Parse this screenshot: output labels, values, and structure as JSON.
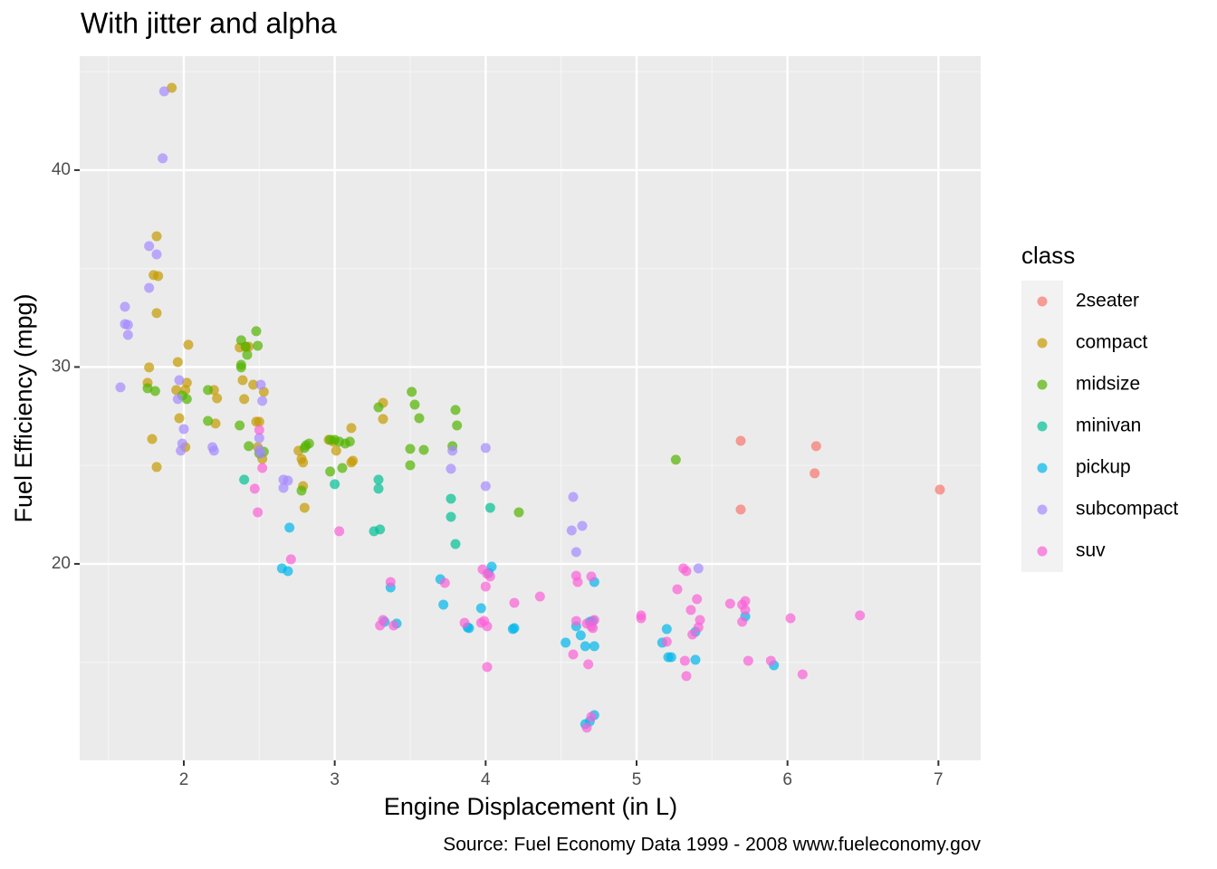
{
  "chart_data": {
    "type": "scatter",
    "title": "With jitter and alpha",
    "x_label": "Engine Displacement (in L)",
    "y_label": "Fuel Efficiency (mpg)",
    "caption": "Source: Fuel Economy Data 1999 - 2008 www.fueleconomy.gov",
    "legend_title": "class",
    "legend_position": "right",
    "grid": true,
    "alpha": 0.7,
    "xlim": [
      1.31,
      7.28
    ],
    "ylim": [
      10.02,
      45.79
    ],
    "xticks": [
      2,
      3,
      4,
      5,
      6,
      7
    ],
    "yticks": [
      20,
      30,
      40
    ],
    "series": [
      {
        "name": "2seater",
        "color": "#F8766D",
        "x": [
          5.69,
          6.19,
          6.18,
          5.69,
          7.01
        ],
        "y": [
          26.25,
          25.98,
          24.6,
          22.76,
          23.77
        ]
      },
      {
        "name": "compact",
        "color": "#C49A00",
        "x": [
          1.92,
          1.82,
          1.8,
          1.83,
          1.82,
          1.77,
          1.76,
          1.79,
          1.82,
          1.96,
          1.95,
          2.02,
          2.01,
          2.03,
          2.2,
          1.97,
          2.01,
          2.22,
          2.21,
          2.37,
          2.41,
          2.43,
          2.39,
          2.46,
          2.4,
          2.48,
          2.5,
          2.49,
          2.52,
          2.53,
          2.76,
          2.78,
          2.79,
          2.79,
          2.8,
          2.96,
          2.99,
          3.01,
          3.11,
          3.11,
          3.12,
          3.32,
          3.32
        ],
        "y": [
          44.18,
          36.64,
          34.67,
          34.62,
          32.74,
          29.98,
          29.2,
          26.34,
          24.92,
          30.25,
          28.83,
          29.2,
          28.83,
          31.13,
          28.83,
          27.4,
          25.93,
          28.41,
          27.13,
          30.99,
          31.03,
          31.03,
          29.33,
          29.1,
          28.37,
          27.22,
          27.22,
          25.93,
          25.33,
          28.74,
          25.75,
          25.33,
          25.15,
          23.95,
          22.85,
          26.3,
          26.21,
          25.75,
          26.9,
          25.15,
          25.24,
          28.18,
          27.36
        ]
      },
      {
        "name": "midsize",
        "color": "#53B400",
        "x": [
          1.76,
          1.81,
          1.99,
          2.02,
          2.16,
          2.16,
          2.37,
          2.38,
          2.38,
          2.38,
          2.41,
          2.42,
          2.48,
          2.49,
          2.43,
          2.5,
          2.53,
          2.78,
          2.8,
          2.81,
          2.83,
          2.97,
          2.97,
          3.0,
          3.03,
          3.05,
          3.07,
          3.1,
          3.29,
          3.5,
          3.51,
          3.53,
          3.56,
          3.59,
          3.5,
          3.8,
          3.81,
          3.78,
          4.22,
          5.26
        ],
        "y": [
          28.92,
          28.78,
          28.55,
          28.37,
          28.83,
          27.26,
          27.03,
          29.98,
          30.11,
          31.36,
          31.03,
          30.62,
          31.82,
          31.08,
          25.98,
          25.61,
          25.7,
          23.72,
          25.89,
          26.02,
          26.11,
          24.69,
          26.3,
          26.3,
          26.21,
          24.87,
          26.11,
          26.21,
          27.95,
          25.84,
          28.74,
          28.09,
          27.4,
          25.79,
          25.01,
          27.82,
          27.03,
          25.98,
          22.62,
          25.29
        ]
      },
      {
        "name": "minivan",
        "color": "#00C094",
        "x": [
          2.4,
          3.0,
          3.29,
          3.29,
          3.3,
          3.26,
          3.77,
          3.77,
          3.8,
          4.03
        ],
        "y": [
          24.28,
          24.05,
          24.28,
          23.82,
          21.75,
          21.66,
          23.31,
          22.39,
          21.01,
          22.85
        ]
      },
      {
        "name": "pickup",
        "color": "#00B6EB",
        "x": [
          2.7,
          2.65,
          2.69,
          3.37,
          3.33,
          3.41,
          3.7,
          3.72,
          3.88,
          3.89,
          3.97,
          4.04,
          4.02,
          4.18,
          4.19,
          4.53,
          4.6,
          4.63,
          4.66,
          4.72,
          4.69,
          4.71,
          4.72,
          4.66,
          4.69,
          4.72,
          5.17,
          5.2,
          5.21,
          5.23,
          5.39,
          5.39,
          5.72,
          5.91
        ],
        "y": [
          21.84,
          19.77,
          19.63,
          18.8,
          17.06,
          16.97,
          19.22,
          17.93,
          16.78,
          16.74,
          17.75,
          19.86,
          19.54,
          16.69,
          16.74,
          16.0,
          16.83,
          16.37,
          15.82,
          15.82,
          17.06,
          17.1,
          19.08,
          11.86,
          12.0,
          12.32,
          16.0,
          16.69,
          15.26,
          15.26,
          16.55,
          15.13,
          17.33,
          14.85
        ]
      },
      {
        "name": "subcompact",
        "color": "#A58AFF",
        "x": [
          1.87,
          1.86,
          1.77,
          1.82,
          1.77,
          1.61,
          1.61,
          1.63,
          1.63,
          1.58,
          1.97,
          1.96,
          1.99,
          1.98,
          2.0,
          2.19,
          2.2,
          2.51,
          2.52,
          2.5,
          2.5,
          2.51,
          2.66,
          2.69,
          2.66,
          3.78,
          3.77,
          4.0,
          4.0,
          4.58,
          4.57,
          4.64,
          4.6,
          5.41
        ],
        "y": [
          44.0,
          40.6,
          36.14,
          35.72,
          34.02,
          33.06,
          32.18,
          32.14,
          31.63,
          28.97,
          29.33,
          28.37,
          26.11,
          25.75,
          26.85,
          25.93,
          25.75,
          29.1,
          28.28,
          26.39,
          25.79,
          25.61,
          24.28,
          24.23,
          23.86,
          25.75,
          24.83,
          25.89,
          23.95,
          23.4,
          21.7,
          21.93,
          20.6,
          19.77
        ]
      },
      {
        "name": "suv",
        "color": "#FB61D7",
        "x": [
          2.47,
          2.49,
          2.52,
          2.5,
          2.71,
          3.03,
          3.37,
          3.3,
          3.32,
          3.39,
          3.73,
          3.86,
          3.98,
          3.97,
          3.99,
          4.0,
          4.01,
          4.03,
          4.01,
          4.01,
          4.19,
          4.36,
          4.6,
          4.61,
          4.6,
          4.58,
          4.67,
          4.7,
          4.7,
          4.71,
          4.68,
          4.72,
          4.7,
          4.67,
          5.03,
          5.03,
          5.2,
          5.27,
          5.31,
          5.33,
          5.32,
          5.33,
          5.36,
          5.37,
          5.4,
          5.41,
          5.42,
          5.62,
          5.7,
          5.72,
          5.72,
          5.7,
          5.74,
          5.89,
          6.02,
          6.1,
          6.48
        ],
        "y": [
          23.82,
          22.62,
          24.87,
          26.8,
          20.23,
          21.66,
          19.08,
          16.87,
          17.15,
          16.87,
          19.03,
          17.01,
          19.72,
          17.01,
          17.1,
          18.85,
          19.49,
          19.36,
          16.83,
          14.76,
          18.02,
          18.34,
          19.4,
          19.08,
          17.1,
          15.4,
          16.97,
          16.83,
          19.36,
          16.74,
          14.9,
          17.15,
          12.23,
          11.68,
          17.38,
          17.24,
          16.05,
          18.71,
          19.77,
          19.63,
          15.08,
          14.3,
          17.66,
          16.41,
          18.21,
          16.78,
          17.15,
          17.98,
          17.93,
          18.11,
          17.66,
          17.06,
          15.08,
          15.08,
          17.24,
          14.39,
          17.38
        ]
      }
    ]
  }
}
